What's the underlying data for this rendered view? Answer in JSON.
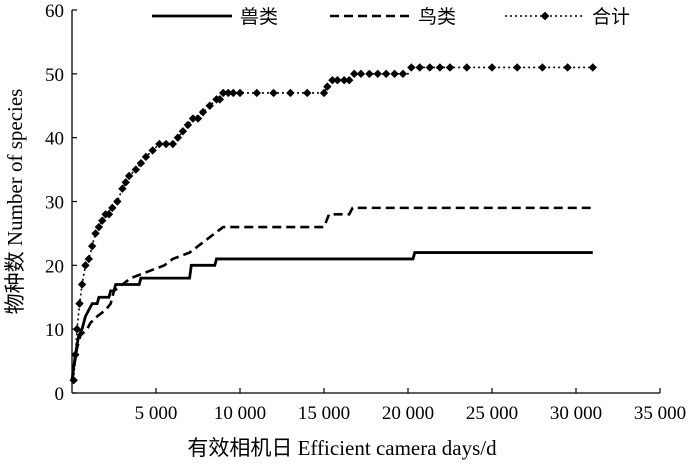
{
  "chart_data": {
    "type": "line",
    "title": "",
    "xlabel": "有效相机日 Efficient camera days/d",
    "ylabel": "物种数 Number of species",
    "xlim": [
      0,
      35000
    ],
    "ylim": [
      0,
      60
    ],
    "x_ticks": [
      5000,
      10000,
      15000,
      20000,
      25000,
      30000,
      35000
    ],
    "x_tick_labels": [
      "5 000",
      "10 000",
      "15 000",
      "20 000",
      "25 000",
      "30 000",
      "35 000"
    ],
    "y_ticks": [
      0,
      10,
      20,
      30,
      40,
      50,
      60
    ],
    "y_tick_labels": [
      "0",
      "10",
      "20",
      "30",
      "40",
      "50",
      "60"
    ],
    "grid": false,
    "legend_position": "top",
    "series": [
      {
        "name": "兽类",
        "style": "solid",
        "color": "#000000",
        "points": [
          [
            0,
            2
          ],
          [
            200,
            6
          ],
          [
            400,
            9
          ],
          [
            600,
            10
          ],
          [
            800,
            12
          ],
          [
            1000,
            13
          ],
          [
            1200,
            14
          ],
          [
            1500,
            14
          ],
          [
            1600,
            15
          ],
          [
            2200,
            15
          ],
          [
            2300,
            16
          ],
          [
            2500,
            16
          ],
          [
            2600,
            17
          ],
          [
            4000,
            17
          ],
          [
            4100,
            18
          ],
          [
            7000,
            18
          ],
          [
            7100,
            20
          ],
          [
            8500,
            20
          ],
          [
            8600,
            21
          ],
          [
            20300,
            21
          ],
          [
            20400,
            22
          ],
          [
            31000,
            22
          ]
        ]
      },
      {
        "name": "鸟类",
        "style": "dashed",
        "color": "#000000",
        "points": [
          [
            0,
            2
          ],
          [
            300,
            7
          ],
          [
            500,
            9
          ],
          [
            900,
            10
          ],
          [
            1100,
            11
          ],
          [
            1500,
            12
          ],
          [
            2000,
            13
          ],
          [
            2300,
            14
          ],
          [
            2500,
            16
          ],
          [
            3000,
            17
          ],
          [
            3500,
            18
          ],
          [
            4500,
            19
          ],
          [
            5500,
            20
          ],
          [
            6000,
            21
          ],
          [
            7000,
            22
          ],
          [
            7500,
            23
          ],
          [
            8000,
            24
          ],
          [
            8500,
            25
          ],
          [
            9000,
            26
          ],
          [
            15000,
            26
          ],
          [
            15300,
            28
          ],
          [
            16500,
            28
          ],
          [
            16700,
            29
          ],
          [
            31000,
            29
          ]
        ]
      },
      {
        "name": "合计",
        "style": "dotted-diamond",
        "color": "#000000",
        "points": [
          [
            100,
            2
          ],
          [
            200,
            6
          ],
          [
            300,
            10
          ],
          [
            450,
            14
          ],
          [
            600,
            17
          ],
          [
            800,
            20
          ],
          [
            1000,
            21
          ],
          [
            1200,
            23
          ],
          [
            1400,
            25
          ],
          [
            1600,
            26
          ],
          [
            1800,
            27
          ],
          [
            2000,
            28
          ],
          [
            2400,
            29
          ],
          [
            2700,
            30
          ],
          [
            3000,
            32
          ],
          [
            3200,
            33
          ],
          [
            3400,
            34
          ],
          [
            3800,
            35
          ],
          [
            4100,
            36
          ],
          [
            4400,
            37
          ],
          [
            4800,
            38
          ],
          [
            5200,
            39
          ],
          [
            6000,
            39
          ],
          [
            6300,
            40
          ],
          [
            6600,
            41
          ],
          [
            6900,
            42
          ],
          [
            7200,
            43
          ],
          [
            7800,
            44
          ],
          [
            8200,
            45
          ],
          [
            8600,
            46
          ],
          [
            9000,
            47
          ],
          [
            15000,
            47
          ],
          [
            15200,
            48
          ],
          [
            15500,
            49
          ],
          [
            16500,
            49
          ],
          [
            16800,
            50
          ],
          [
            20000,
            50
          ],
          [
            20200,
            51
          ],
          [
            31000,
            51
          ]
        ],
        "markers": [
          [
            100,
            2
          ],
          [
            200,
            6
          ],
          [
            300,
            10
          ],
          [
            450,
            14
          ],
          [
            600,
            17
          ],
          [
            800,
            20
          ],
          [
            1000,
            21
          ],
          [
            1200,
            23
          ],
          [
            1400,
            25
          ],
          [
            1600,
            26
          ],
          [
            1800,
            27
          ],
          [
            2000,
            28
          ],
          [
            2200,
            28
          ],
          [
            2400,
            29
          ],
          [
            2700,
            30
          ],
          [
            3000,
            32
          ],
          [
            3200,
            33
          ],
          [
            3400,
            34
          ],
          [
            3800,
            35
          ],
          [
            4100,
            36
          ],
          [
            4400,
            37
          ],
          [
            4800,
            38
          ],
          [
            5200,
            39
          ],
          [
            5600,
            39
          ],
          [
            6000,
            39
          ],
          [
            6300,
            40
          ],
          [
            6600,
            41
          ],
          [
            6900,
            42
          ],
          [
            7200,
            43
          ],
          [
            7500,
            43
          ],
          [
            7800,
            44
          ],
          [
            8200,
            45
          ],
          [
            8600,
            46
          ],
          [
            8800,
            46
          ],
          [
            9000,
            47
          ],
          [
            9300,
            47
          ],
          [
            9600,
            47
          ],
          [
            10000,
            47
          ],
          [
            11000,
            47
          ],
          [
            12000,
            47
          ],
          [
            13000,
            47
          ],
          [
            14000,
            47
          ],
          [
            15000,
            47
          ],
          [
            15200,
            48
          ],
          [
            15500,
            49
          ],
          [
            15800,
            49
          ],
          [
            16200,
            49
          ],
          [
            16500,
            49
          ],
          [
            16800,
            50
          ],
          [
            17200,
            50
          ],
          [
            17700,
            50
          ],
          [
            18200,
            50
          ],
          [
            18700,
            50
          ],
          [
            19200,
            50
          ],
          [
            19700,
            50
          ],
          [
            20200,
            51
          ],
          [
            20700,
            51
          ],
          [
            21300,
            51
          ],
          [
            21900,
            51
          ],
          [
            22500,
            51
          ],
          [
            23500,
            51
          ],
          [
            25000,
            51
          ],
          [
            26500,
            51
          ],
          [
            28000,
            51
          ],
          [
            29500,
            51
          ],
          [
            31000,
            51
          ]
        ]
      }
    ]
  }
}
